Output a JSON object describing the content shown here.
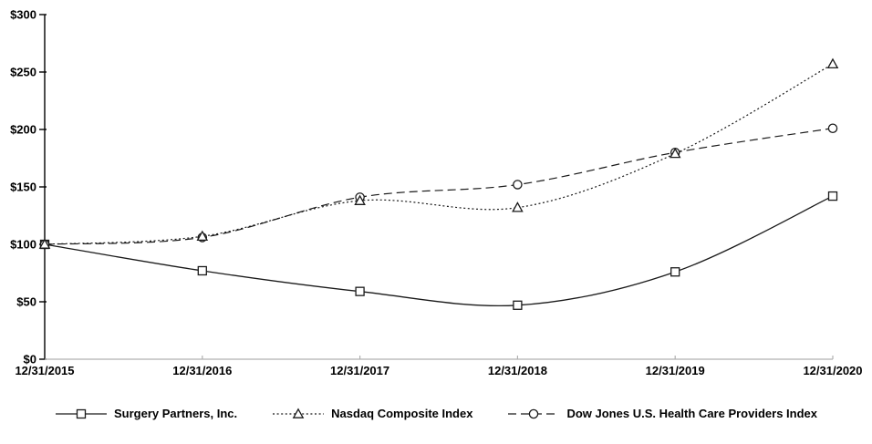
{
  "chart_data": {
    "type": "line",
    "title": "",
    "xlabel": "",
    "ylabel": "",
    "categories": [
      "12/31/2015",
      "12/31/2016",
      "12/31/2017",
      "12/31/2018",
      "12/31/2019",
      "12/31/2020"
    ],
    "y_tick_labels": [
      "$0",
      "$50",
      "$100",
      "$150",
      "$200",
      "$250",
      "$300"
    ],
    "y_tick_values": [
      0,
      50,
      100,
      150,
      200,
      250,
      300
    ],
    "ylim": [
      0,
      300
    ],
    "grid": false,
    "smooth_lines": true,
    "legend_position": "bottom",
    "series": [
      {
        "name": "Surgery Partners, Inc.",
        "marker": "square",
        "line_style": "solid",
        "color": "#1a1a1a",
        "values": [
          100,
          77,
          59,
          47,
          76,
          142
        ]
      },
      {
        "name": "Nasdaq Composite Index",
        "marker": "triangle",
        "line_style": "dotted",
        "color": "#1a1a1a",
        "values": [
          100,
          107,
          138,
          132,
          179,
          257
        ]
      },
      {
        "name": "Dow Jones U.S. Health Care Providers Index",
        "marker": "circle",
        "line_style": "dashed",
        "color": "#1a1a1a",
        "values": [
          100,
          106,
          141,
          152,
          180,
          201
        ]
      }
    ]
  },
  "colors": {
    "background": "#ffffff",
    "axis": "#000000",
    "baseline": "#b0b0b0",
    "text": "#000000",
    "marker_fill": "#ffffff"
  }
}
